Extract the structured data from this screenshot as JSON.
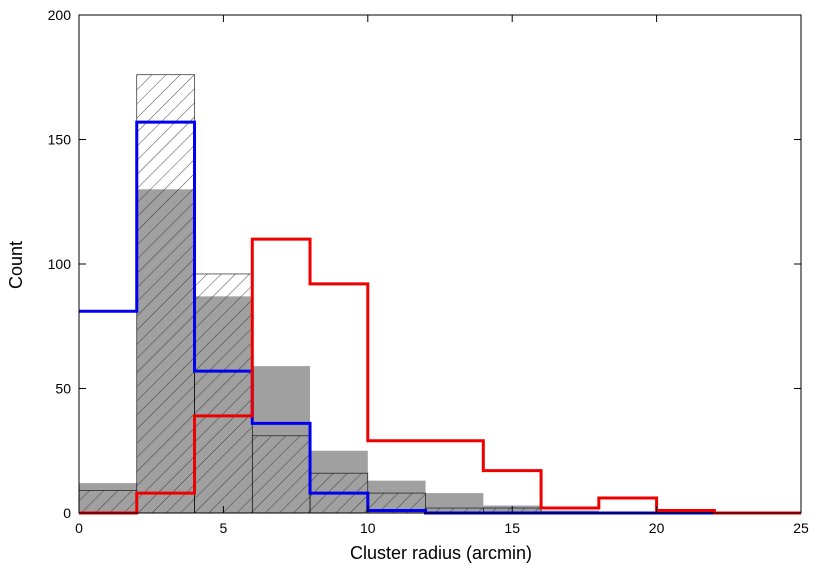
{
  "chart_data": {
    "type": "bar",
    "xlabel": "Cluster radius (arcmin)",
    "ylabel": "Count",
    "xlim": [
      0,
      25
    ],
    "ylim": [
      0,
      200
    ],
    "xticks": [
      "0",
      "5",
      "10",
      "15",
      "20",
      "25"
    ],
    "yticks": [
      "0",
      "50",
      "100",
      "150",
      "200"
    ],
    "bin_edges": [
      0,
      2,
      4,
      6,
      8,
      10,
      12,
      14,
      16,
      18,
      20,
      22,
      24
    ],
    "grid": false,
    "series": [
      {
        "style": "filled-gray",
        "color": "#a0a0a0",
        "values": [
          12,
          130,
          87,
          59,
          25,
          13,
          8,
          3,
          1,
          0,
          0,
          0
        ]
      },
      {
        "style": "hatched",
        "color": "#000000",
        "values": [
          9,
          176,
          96,
          31,
          16,
          8,
          2,
          2,
          0,
          0,
          0,
          0
        ]
      },
      {
        "style": "step-line",
        "color": "#0000ee",
        "values": [
          81,
          157,
          57,
          36,
          8,
          1,
          0,
          0,
          0,
          0,
          0,
          0
        ]
      },
      {
        "style": "step-line",
        "color": "#ee0000",
        "values": [
          0,
          8,
          39,
          110,
          92,
          29,
          29,
          17,
          2,
          6,
          1,
          0
        ]
      }
    ]
  }
}
